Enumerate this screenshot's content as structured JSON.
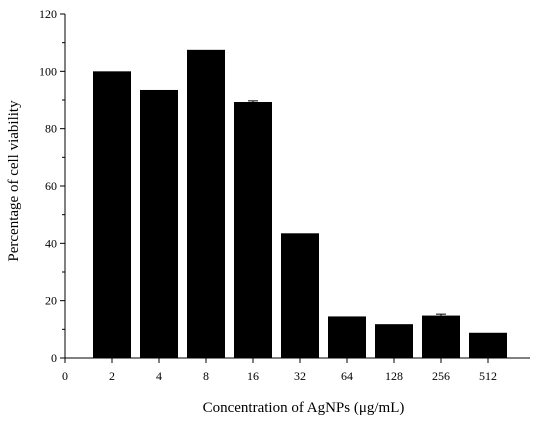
{
  "chart_data": {
    "type": "bar",
    "title": "",
    "xlabel": "Concentration of AgNPs (μg/mL)",
    "ylabel": "Percentage of cell viability",
    "x_zero_label": "0",
    "categories": [
      "2",
      "4",
      "8",
      "16",
      "32",
      "64",
      "128",
      "256",
      "512"
    ],
    "values": [
      100,
      93.5,
      107.5,
      89.3,
      43.5,
      14.5,
      11.8,
      14.8,
      8.8
    ],
    "errors": [
      0,
      0,
      0,
      0.4,
      0,
      0,
      0,
      0.5,
      0
    ],
    "ylim": [
      0,
      120
    ],
    "yticks": [
      0,
      20,
      40,
      60,
      80,
      100,
      120
    ],
    "grid": false,
    "legend": "none",
    "bar_color": "#000000"
  }
}
